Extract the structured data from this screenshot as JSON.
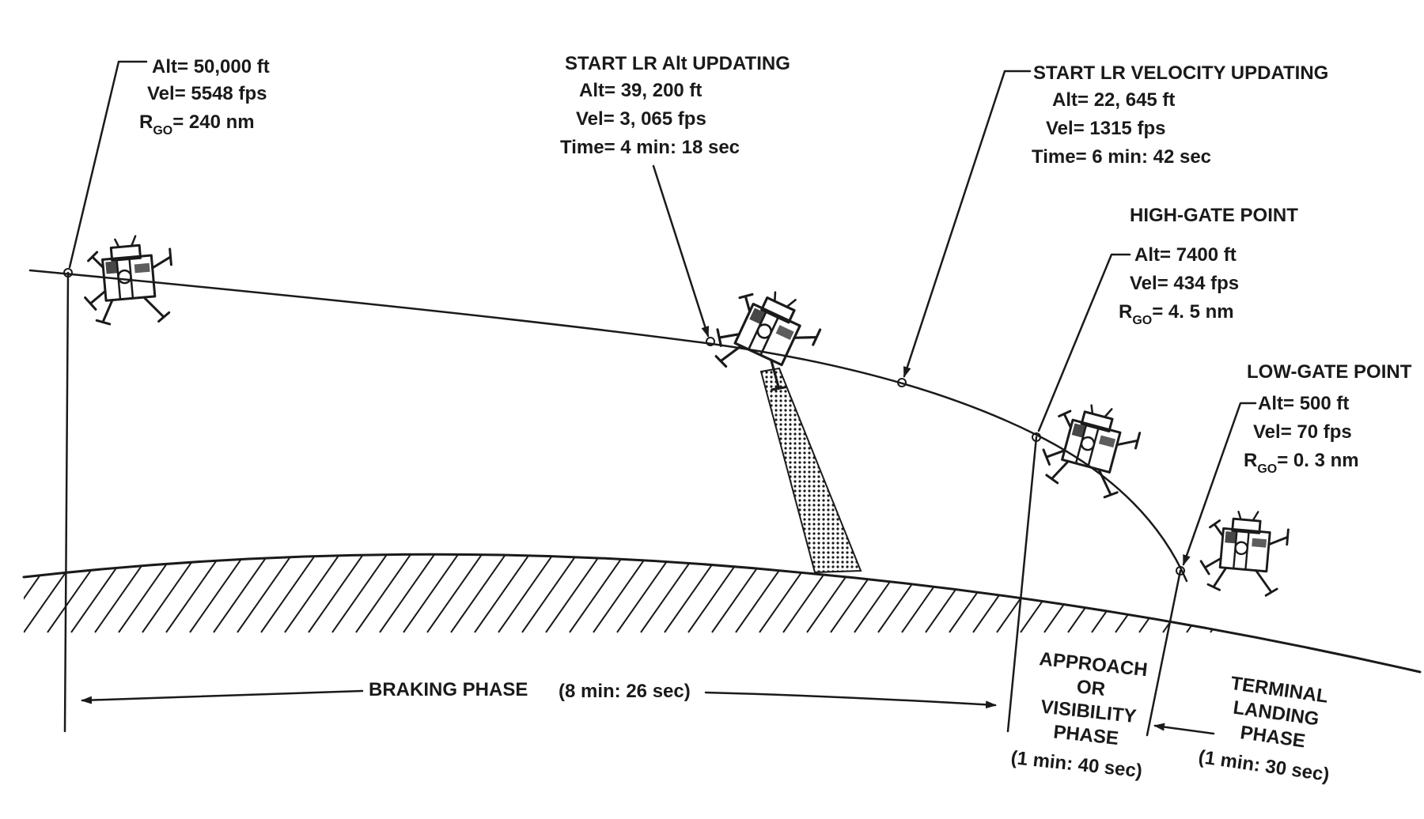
{
  "start_point": {
    "alt_label": "Alt",
    "alt": "50,000 ft",
    "vel_label": "Vel",
    "vel": "5548 fps",
    "rgo_label": "R",
    "rgo_sub": "GO",
    "rgo": "240 nm"
  },
  "lr_alt_update": {
    "title": "START LR Alt UPDATING",
    "alt_label": "Alt",
    "alt": "39, 200 ft",
    "vel_label": "Vel",
    "vel": "3, 065 fps",
    "time_label": "Time",
    "time": "4 min: 18 sec"
  },
  "lr_vel_update": {
    "title": "START LR VELOCITY UPDATING",
    "alt_label": "Alt",
    "alt": "22, 645 ft",
    "vel_label": "Vel",
    "vel": "1315 fps",
    "time_label": "Time",
    "time": "6 min:  42 sec"
  },
  "high_gate": {
    "title": "HIGH-GATE POINT",
    "alt_label": "Alt",
    "alt": "7400 ft",
    "vel_label": "Vel",
    "vel": "434 fps",
    "rgo_label": "R",
    "rgo_sub": "GO",
    "rgo": "4. 5 nm"
  },
  "low_gate": {
    "title": "LOW-GATE POINT",
    "alt_label": "Alt",
    "alt": "500 ft",
    "vel_label": "Vel",
    "vel": "70 fps",
    "rgo_label": "R",
    "rgo_sub": "GO",
    "rgo": "0. 3 nm"
  },
  "phases": {
    "braking": "BRAKING PHASE",
    "braking_time": "(8 min: 26 sec)",
    "approach_line1": "APPROACH",
    "approach_line2": "OR",
    "approach_line3": "VISIBILITY",
    "approach_line4": "PHASE",
    "approach_time": "(1 min: 40 sec)",
    "terminal_line1": "TERMINAL",
    "terminal_line2": "LANDING",
    "terminal_line3": "PHASE",
    "terminal_time": "(1 min: 30 sec)"
  }
}
